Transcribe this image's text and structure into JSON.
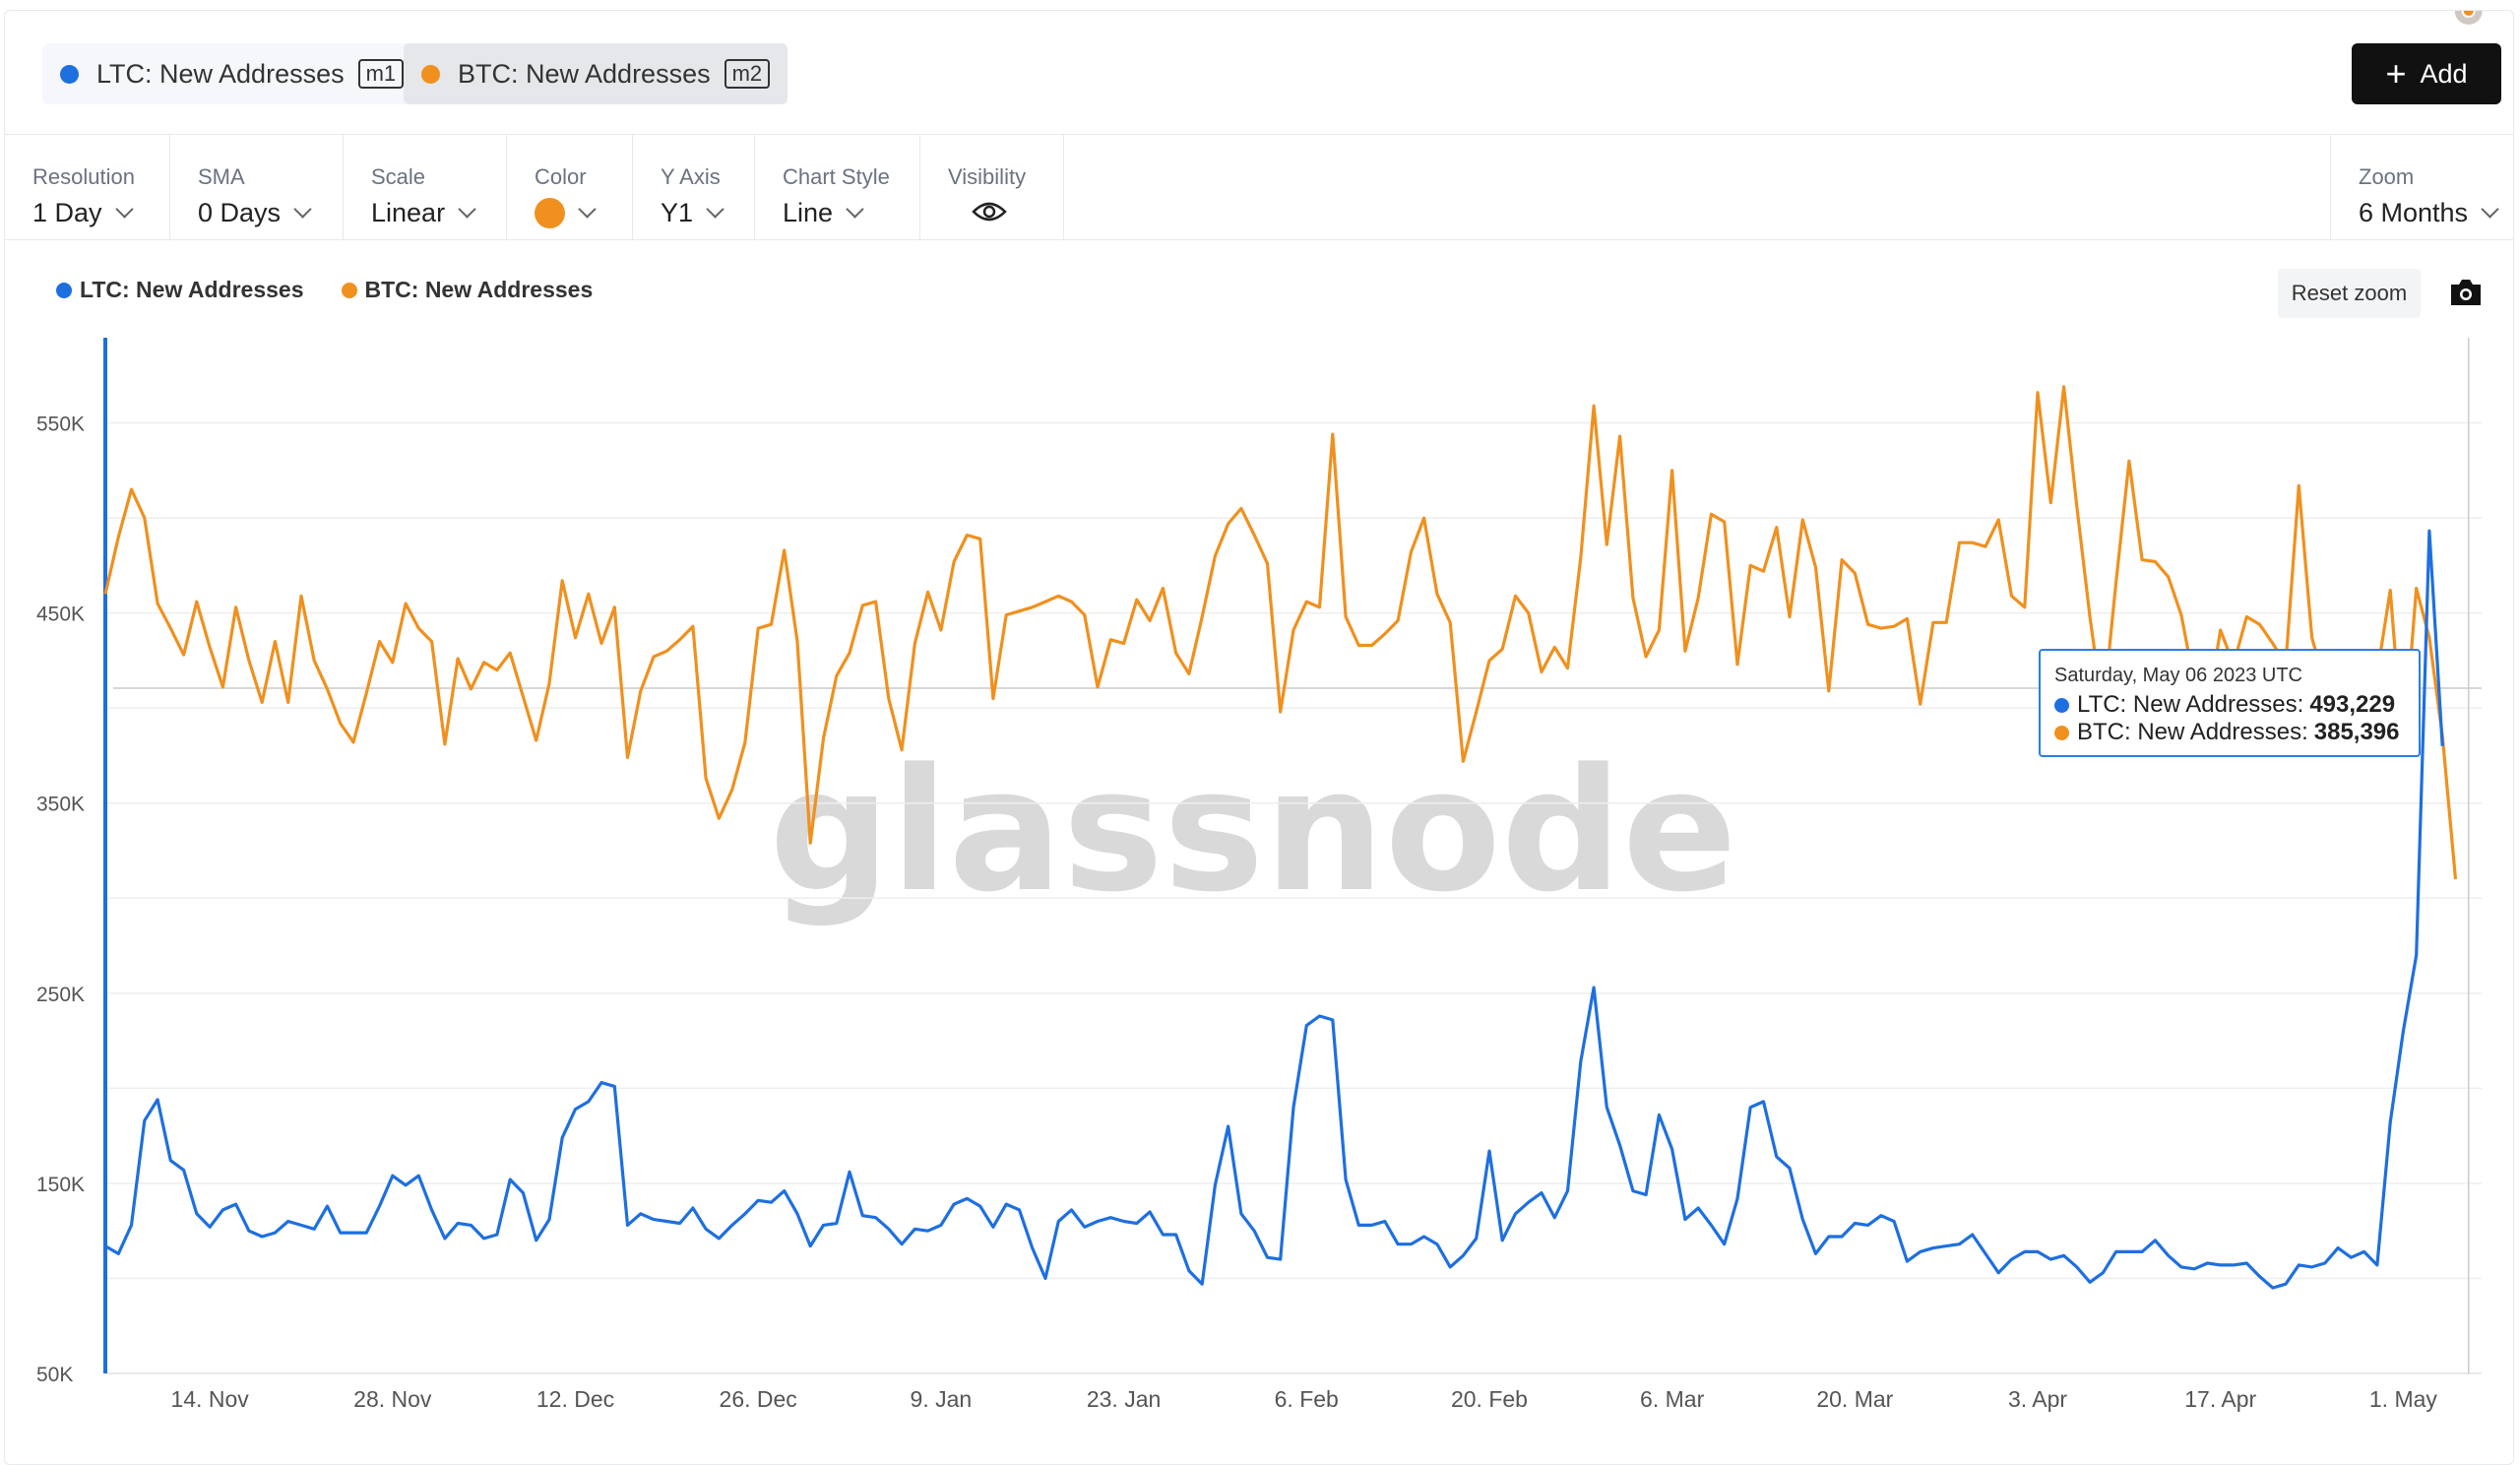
{
  "metrics": [
    {
      "name": "LTC: New Addresses",
      "tag": "m1",
      "color": "#1e6fe0"
    },
    {
      "name": "BTC: New Addresses",
      "tag": "m2",
      "color": "#f0901e"
    }
  ],
  "toolbar": {
    "add_label": "Add"
  },
  "settings": {
    "resolution": {
      "label": "Resolution",
      "value": "1 Day"
    },
    "sma": {
      "label": "SMA",
      "value": "0 Days"
    },
    "scale": {
      "label": "Scale",
      "value": "Linear"
    },
    "color": {
      "label": "Color",
      "value": "#f0901e"
    },
    "yaxis": {
      "label": "Y Axis",
      "value": "Y1"
    },
    "chart_style": {
      "label": "Chart Style",
      "value": "Line"
    },
    "visibility": {
      "label": "Visibility",
      "icon": "eye-icon"
    },
    "zoom": {
      "label": "Zoom",
      "value": "6 Months"
    }
  },
  "chart_controls": {
    "reset_zoom_label": "Reset zoom",
    "camera_icon": "camera-icon"
  },
  "watermark": "glassnode",
  "tooltip": {
    "date": "Saturday, May 06 2023 UTC",
    "rows": [
      {
        "label": "LTC: New Addresses:",
        "value": "493,229",
        "color": "#1e6fe0"
      },
      {
        "label": "BTC: New Addresses:",
        "value": "385,396",
        "color": "#f0901e"
      }
    ]
  },
  "chart_data": {
    "type": "line",
    "x_start": "2022-11-06",
    "x_end": "2023-05-07",
    "xtick_labels": [
      "14. Nov",
      "28. Nov",
      "12. Dec",
      "26. Dec",
      "9. Jan",
      "23. Jan",
      "6. Feb",
      "20. Feb",
      "6. Mar",
      "20. Mar",
      "3. Apr",
      "17. Apr",
      "1. May"
    ],
    "yticks": [
      50000,
      150000,
      250000,
      350000,
      450000,
      550000
    ],
    "ytick_labels": [
      "50K",
      "150K",
      "250K",
      "350K",
      "450K",
      "550K"
    ],
    "ylim": [
      50000,
      600000
    ],
    "grid": true,
    "legend_position": "top-left",
    "series": [
      {
        "name": "LTC: New Addresses",
        "color": "#1e6fe0",
        "values": [
          117000,
          113000,
          128000,
          183000,
          194000,
          162000,
          157000,
          134000,
          127000,
          136000,
          139000,
          125000,
          122000,
          124000,
          130000,
          128000,
          126000,
          138000,
          124000,
          124000,
          124000,
          138000,
          154000,
          149000,
          154000,
          136000,
          121000,
          129000,
          128000,
          121000,
          123000,
          152000,
          145000,
          120000,
          131000,
          174000,
          189000,
          193000,
          203000,
          201000,
          128000,
          134000,
          131000,
          130000,
          129000,
          137000,
          126000,
          121000,
          128000,
          134000,
          141000,
          140000,
          146000,
          134000,
          117000,
          128000,
          129000,
          156000,
          133000,
          132000,
          126000,
          118000,
          126000,
          125000,
          128000,
          139000,
          142000,
          138000,
          127000,
          139000,
          136000,
          116000,
          100000,
          130000,
          136000,
          127000,
          130000,
          132000,
          130000,
          129000,
          135000,
          123000,
          123000,
          104000,
          97000,
          149000,
          180000,
          134000,
          125000,
          111000,
          110000,
          190000,
          233000,
          238000,
          236000,
          152000,
          128000,
          128000,
          130000,
          118000,
          118000,
          122000,
          118000,
          106000,
          112000,
          121000,
          167000,
          120000,
          134000,
          140000,
          145000,
          132000,
          146000,
          214000,
          253000,
          190000,
          170000,
          146000,
          144000,
          186000,
          168000,
          131000,
          137000,
          128000,
          118000,
          142000,
          190000,
          193000,
          164000,
          158000,
          131000,
          113000,
          122000,
          122000,
          129000,
          128000,
          133000,
          130000,
          109000,
          114000,
          116000,
          117000,
          118000,
          123000,
          113000,
          103000,
          110000,
          114000,
          114000,
          110000,
          112000,
          106000,
          98000,
          103000,
          114000,
          114000,
          114000,
          120000,
          112000,
          106000,
          105000,
          108000,
          107000,
          107000,
          108000,
          101000,
          95000,
          97000,
          107000,
          106000,
          108000,
          116000,
          111000,
          114000,
          107000,
          182000,
          230000,
          270000,
          493229,
          380000
        ]
      },
      {
        "name": "BTC: New Addresses",
        "color": "#f0901e",
        "values": [
          460000,
          490000,
          515000,
          500000,
          455000,
          442000,
          428000,
          456000,
          432000,
          411000,
          453000,
          425000,
          403000,
          435000,
          403000,
          459000,
          425000,
          410000,
          392000,
          382000,
          408000,
          435000,
          424000,
          455000,
          442000,
          435000,
          381000,
          426000,
          410000,
          424000,
          420000,
          429000,
          406000,
          383000,
          413000,
          467000,
          437000,
          460000,
          434000,
          453000,
          374000,
          409000,
          427000,
          430000,
          436000,
          443000,
          363000,
          342000,
          357000,
          382000,
          442000,
          444000,
          483000,
          435000,
          329000,
          384000,
          417000,
          429000,
          454000,
          456000,
          405000,
          378000,
          434000,
          461000,
          441000,
          477000,
          491000,
          489000,
          405000,
          449000,
          451000,
          453000,
          456000,
          459000,
          456000,
          449000,
          411000,
          436000,
          434000,
          457000,
          446000,
          463000,
          429000,
          418000,
          448000,
          480000,
          497000,
          505000,
          491000,
          476000,
          398000,
          441000,
          456000,
          453000,
          544000,
          448000,
          433000,
          433000,
          439000,
          446000,
          482000,
          500000,
          460000,
          445000,
          372000,
          398000,
          425000,
          431000,
          459000,
          450000,
          419000,
          432000,
          421000,
          479000,
          559000,
          486000,
          543000,
          458000,
          427000,
          441000,
          525000,
          430000,
          458000,
          502000,
          498000,
          423000,
          475000,
          472000,
          495000,
          448000,
          499000,
          474000,
          409000,
          478000,
          471000,
          444000,
          442000,
          443000,
          447000,
          402000,
          445000,
          445000,
          487000,
          487000,
          485000,
          499000,
          459000,
          453000,
          566000,
          508000,
          569000,
          506000,
          448000,
          398000,
          466000,
          530000,
          478000,
          477000,
          469000,
          449000,
          413000,
          399000,
          441000,
          423000,
          448000,
          444000,
          434000,
          423000,
          517000,
          437000,
          413000,
          414000,
          397000,
          426000,
          418000,
          462000,
          376000,
          463000,
          437000,
          385396,
          310000
        ]
      }
    ]
  }
}
